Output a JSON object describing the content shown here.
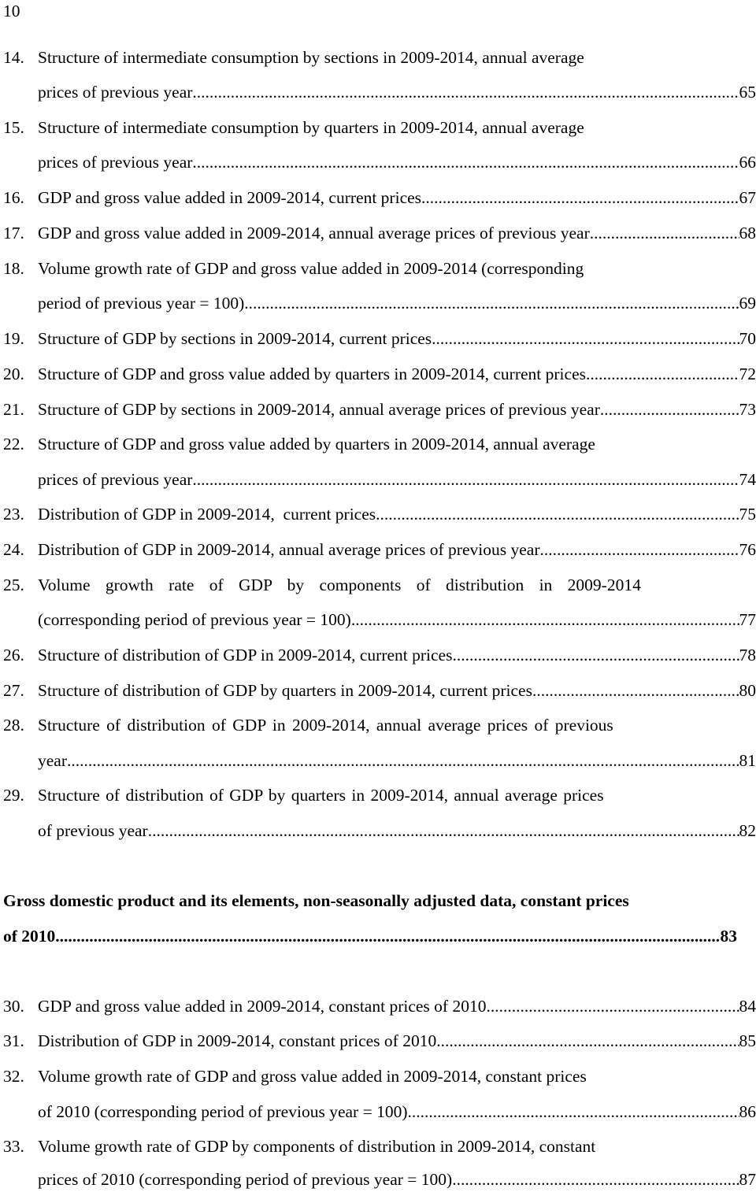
{
  "page_number": "10",
  "entries": [
    {
      "num": "14.",
      "line1": "Structure of intermediate consumption by sections in 2009-2014, annual average",
      "leader_text": "prices of previous year",
      "page": "65"
    },
    {
      "num": "15.",
      "line1": "Structure of intermediate consumption by quarters in 2009-2014, annual average",
      "leader_text": "prices of previous year",
      "page": "66"
    },
    {
      "num": "16.",
      "leader_text": "GDP and gross value added in 2009-2014, current prices",
      "page": "67"
    },
    {
      "num": "17.",
      "leader_text": "GDP and gross value added in 2009-2014, annual average prices of previous year",
      "page": "68"
    },
    {
      "num": "18.",
      "line1": "Volume growth rate of GDP and gross value added in 2009-2014 (corresponding",
      "leader_text": "period of previous year = 100)",
      "page": "69"
    },
    {
      "num": "19.",
      "leader_text": "Structure of GDP by sections in 2009-2014, current prices",
      "page": "70"
    },
    {
      "num": "20.",
      "leader_text": "Structure of GDP and gross value added by quarters in 2009-2014, current prices",
      "page": "72"
    },
    {
      "num": "21.",
      "leader_text": "Structure of GDP by sections in 2009-2014, annual average prices of previous year",
      "page": "73"
    },
    {
      "num": "22.",
      "line1": "Structure of GDP and gross value added by quarters in 2009-2014, annual average",
      "leader_text": "prices of previous year",
      "page": "74"
    },
    {
      "num": "23.",
      "leader_text": "Distribution of GDP in 2009-2014,  current prices",
      "page": "75"
    },
    {
      "num": "24.",
      "leader_text": "Distribution of GDP in 2009-2014, annual average prices of previous year",
      "page": "76"
    },
    {
      "num": "25.",
      "line1": "Volume growth rate of GDP by components of distribution in 2009-2014",
      "leader_text": "(corresponding period of previous year = 100)",
      "page": "77"
    },
    {
      "num": "26.",
      "leader_text": "Structure of distribution of GDP in 2009-2014, current prices",
      "page": "78"
    },
    {
      "num": "27.",
      "leader_text": "Structure of distribution of GDP by quarters in 2009-2014, current prices",
      "page": "80"
    },
    {
      "num": "28.",
      "line1": "Structure of distribution of GDP in 2009-2014, annual average prices of previous",
      "leader_text": "year",
      "page": "81"
    },
    {
      "num": "29.",
      "line1": "Structure of distribution of GDP by quarters in 2009-2014, annual average prices",
      "leader_text": "of previous year",
      "page": "82"
    }
  ],
  "section": {
    "line1": "Gross domestic product and its elements, non-seasonally adjusted data, constant prices",
    "leader_text": "of 2010",
    "page": "83"
  },
  "entries2": [
    {
      "num": "30.",
      "leader_text": "GDP and gross value added in 2009-2014, constant prices of 2010",
      "page": "84"
    },
    {
      "num": "31.",
      "leader_text": "Distribution of GDP in 2009-2014, constant prices of 2010",
      "page": "85"
    },
    {
      "num": "32.",
      "line1": "Volume growth rate of GDP and gross value added in 2009-2014, constant prices",
      "leader_text": "of 2010 (corresponding period of previous year = 100)",
      "page": "86"
    },
    {
      "num": "33.",
      "line1": "Volume growth rate of GDP by components of distribution in 2009-2014, constant",
      "leader_text": "prices of 2010 (corresponding period of previous year = 100)",
      "page": "87"
    }
  ]
}
